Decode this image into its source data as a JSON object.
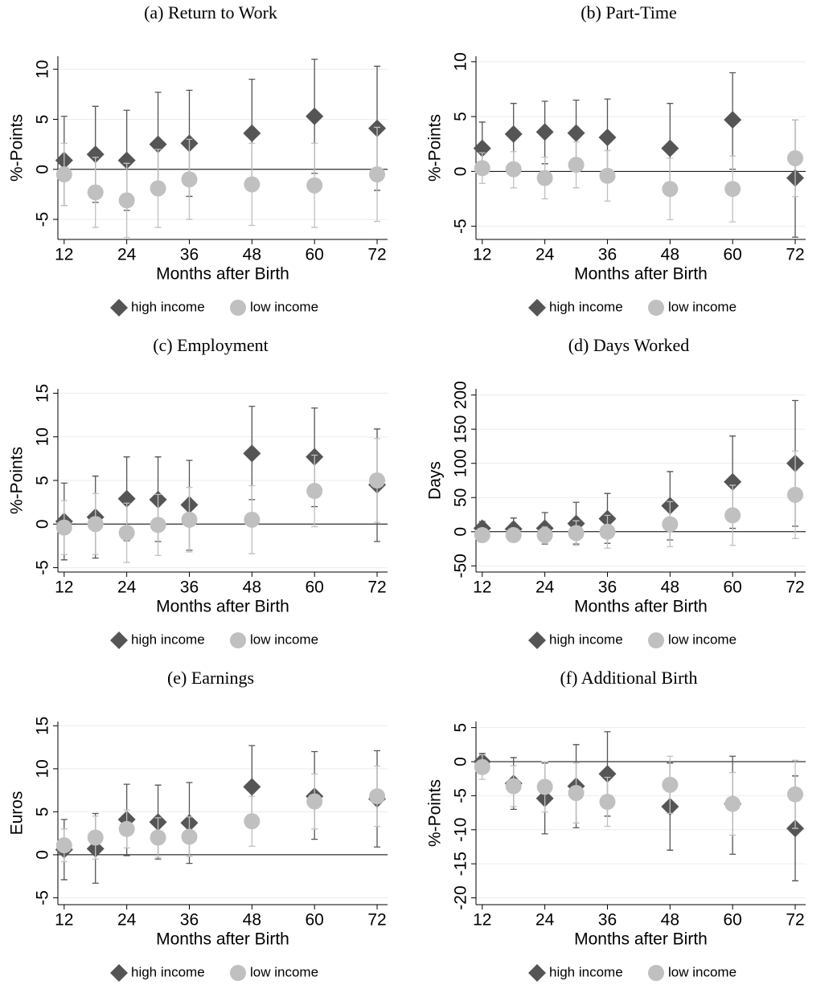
{
  "chart_data": [
    {
      "type": "scatter",
      "title": "(a) Return to Work",
      "x_label": "Months after Birth",
      "y_label": "%-Points",
      "x": [
        12,
        18,
        24,
        30,
        36,
        48,
        60,
        72
      ],
      "xlim": [
        10.8,
        74
      ],
      "xticks": [
        12,
        24,
        36,
        48,
        60,
        72
      ],
      "ylim": [
        -7,
        11.3
      ],
      "yticks": [
        -5,
        0,
        5,
        10
      ],
      "grid": true,
      "hline": 0,
      "series": [
        {
          "name": "high income",
          "color": "#555555",
          "marker": "diamond",
          "values": [
            0.9,
            1.5,
            0.9,
            2.5,
            2.6,
            3.6,
            5.3,
            4.1
          ],
          "lower": [
            -3.6,
            -3.3,
            -4.1,
            -2.6,
            -2.7,
            -1.8,
            -0.4,
            -2.1
          ],
          "upper": [
            5.3,
            6.3,
            5.9,
            7.7,
            7.9,
            9.0,
            11.0,
            10.3
          ]
        },
        {
          "name": "low income",
          "color": "#c0c0c0",
          "marker": "circle",
          "values": [
            -0.5,
            -2.3,
            -3.1,
            -1.9,
            -1.0,
            -1.5,
            -1.6,
            -0.5
          ],
          "lower": [
            -3.6,
            -5.8,
            -6.8,
            -5.8,
            -5.0,
            -5.6,
            -5.8,
            -5.2
          ],
          "upper": [
            2.6,
            1.2,
            0.6,
            2.0,
            3.0,
            2.6,
            2.6,
            4.2
          ]
        }
      ]
    },
    {
      "type": "scatter",
      "title": "(b) Part-Time",
      "x_label": "Months after Birth",
      "y_label": "%-Points",
      "x": [
        12,
        18,
        24,
        30,
        36,
        48,
        60,
        72
      ],
      "xlim": [
        10.8,
        74
      ],
      "xticks": [
        12,
        24,
        36,
        48,
        60,
        72
      ],
      "ylim": [
        -6.2,
        10.5
      ],
      "yticks": [
        -5,
        0,
        5,
        10
      ],
      "grid": true,
      "hline": 0,
      "series": [
        {
          "name": "high income",
          "color": "#555555",
          "marker": "diamond",
          "values": [
            2.1,
            3.4,
            3.6,
            3.5,
            3.1,
            2.1,
            4.7,
            -0.6
          ],
          "lower": [
            -0.3,
            0.6,
            0.7,
            0.5,
            -0.4,
            -2.0,
            0.2,
            -6.0
          ],
          "upper": [
            4.5,
            6.2,
            6.4,
            6.5,
            6.6,
            6.2,
            9.0,
            4.7
          ]
        },
        {
          "name": "low income",
          "color": "#c0c0c0",
          "marker": "circle",
          "values": [
            0.3,
            0.2,
            -0.6,
            0.6,
            -0.4,
            -1.6,
            -1.6,
            1.2
          ],
          "lower": [
            -1.1,
            -1.5,
            -2.5,
            -1.5,
            -2.7,
            -4.4,
            -4.6,
            -2.3
          ],
          "upper": [
            1.7,
            1.8,
            1.3,
            2.7,
            1.9,
            1.2,
            1.4,
            4.7
          ]
        }
      ]
    },
    {
      "type": "scatter",
      "title": "(c) Employment",
      "x_label": "Months after Birth",
      "y_label": "%-Points",
      "x": [
        12,
        18,
        24,
        30,
        36,
        48,
        60,
        72
      ],
      "xlim": [
        10.8,
        74
      ],
      "xticks": [
        12,
        24,
        36,
        48,
        60,
        72
      ],
      "ylim": [
        -5.5,
        15.5
      ],
      "yticks": [
        -5,
        0,
        5,
        10,
        15
      ],
      "grid": true,
      "hline": 0,
      "series": [
        {
          "name": "high income",
          "color": "#555555",
          "marker": "diamond",
          "values": [
            0.3,
            0.8,
            2.9,
            2.8,
            2.2,
            8.1,
            7.7,
            4.5
          ],
          "lower": [
            -4.1,
            -3.9,
            -1.9,
            -2.0,
            -3.0,
            2.8,
            2.0,
            -2.0
          ],
          "upper": [
            4.7,
            5.5,
            7.7,
            7.7,
            7.3,
            13.5,
            13.3,
            10.9
          ]
        },
        {
          "name": "low income",
          "color": "#c0c0c0",
          "marker": "circle",
          "values": [
            -0.4,
            0.0,
            -1.0,
            -0.1,
            0.5,
            0.5,
            3.8,
            5.0
          ],
          "lower": [
            -3.5,
            -3.5,
            -4.4,
            -3.6,
            -3.2,
            -3.4,
            -0.3,
            0.2
          ],
          "upper": [
            2.7,
            3.5,
            2.4,
            3.4,
            4.2,
            4.4,
            7.9,
            9.8
          ]
        }
      ]
    },
    {
      "type": "scatter",
      "title": "(d) Days Worked",
      "x_label": "Months after Birth",
      "y_label": "Days",
      "x": [
        12,
        18,
        24,
        30,
        36,
        48,
        60,
        72
      ],
      "xlim": [
        10.8,
        74
      ],
      "xticks": [
        12,
        24,
        36,
        48,
        60,
        72
      ],
      "ylim": [
        -59,
        209
      ],
      "yticks": [
        -50,
        0,
        50,
        100,
        150,
        200
      ],
      "grid": true,
      "hline": 0,
      "series": [
        {
          "name": "high income",
          "color": "#555555",
          "marker": "diamond",
          "values": [
            5,
            4,
            5,
            12,
            19,
            38,
            73,
            100
          ],
          "lower": [
            -5,
            -10,
            -18,
            -18,
            -17,
            -12,
            5,
            8
          ],
          "upper": [
            15,
            20,
            28,
            43,
            56,
            88,
            140,
            192
          ]
        },
        {
          "name": "low income",
          "color": "#c0c0c0",
          "marker": "circle",
          "values": [
            -5,
            -5,
            -5,
            -2,
            0,
            11,
            24,
            54
          ],
          "lower": [
            -12,
            -12,
            -17,
            -20,
            -24,
            -22,
            -20,
            -10
          ],
          "upper": [
            2,
            2,
            7,
            16,
            24,
            44,
            68,
            118
          ]
        }
      ]
    },
    {
      "type": "scatter",
      "title": "(e) Earnings",
      "x_label": "Months after Birth",
      "y_label": "Euros",
      "x": [
        12,
        18,
        24,
        30,
        36,
        48,
        60,
        72
      ],
      "xlim": [
        10.8,
        74
      ],
      "xticks": [
        12,
        24,
        36,
        48,
        60,
        72
      ],
      "ylim": [
        -5.8,
        15.5
      ],
      "yticks": [
        -5,
        0,
        5,
        10,
        15
      ],
      "grid": true,
      "hline": 0,
      "series": [
        {
          "name": "high income",
          "color": "#555555",
          "marker": "diamond",
          "values": [
            0.6,
            0.7,
            4.1,
            3.8,
            3.7,
            7.9,
            6.8,
            6.5
          ],
          "lower": [
            -2.9,
            -3.3,
            -0.1,
            -0.5,
            -1.0,
            3.1,
            1.8,
            0.9
          ],
          "upper": [
            4.1,
            4.8,
            8.2,
            8.1,
            8.4,
            12.7,
            12.0,
            12.1
          ]
        },
        {
          "name": "low income",
          "color": "#c0c0c0",
          "marker": "circle",
          "values": [
            1.1,
            2.0,
            3.0,
            2.0,
            2.1,
            3.9,
            6.2,
            6.8
          ],
          "lower": [
            -0.8,
            -0.5,
            0.8,
            -0.3,
            -0.2,
            1.0,
            3.0,
            3.3
          ],
          "upper": [
            3.0,
            4.5,
            5.2,
            4.3,
            4.4,
            6.8,
            9.4,
            10.3
          ]
        }
      ]
    },
    {
      "type": "scatter",
      "title": "(f) Additional Birth",
      "x_label": "Months after Birth",
      "y_label": "%-Points",
      "x": [
        12,
        18,
        24,
        30,
        36,
        48,
        60,
        72
      ],
      "xlim": [
        10.8,
        74
      ],
      "xticks": [
        12,
        24,
        36,
        48,
        60,
        72
      ],
      "ylim": [
        -21,
        5.9
      ],
      "yticks": [
        -20,
        -15,
        -10,
        -5,
        0,
        5
      ],
      "grid": true,
      "hline": 0,
      "series": [
        {
          "name": "high income",
          "color": "#555555",
          "marker": "diamond",
          "values": [
            0.0,
            -3.2,
            -5.4,
            -3.6,
            -1.8,
            -6.6,
            -6.2,
            -9.8
          ],
          "lower": [
            -1.2,
            -7.0,
            -10.6,
            -9.7,
            -8.0,
            -13.0,
            -13.6,
            -17.5
          ],
          "upper": [
            1.2,
            0.6,
            -0.2,
            2.5,
            4.4,
            -0.2,
            0.8,
            -2.1
          ]
        },
        {
          "name": "low income",
          "color": "#c0c0c0",
          "marker": "circle",
          "values": [
            -0.8,
            -3.6,
            -3.7,
            -4.6,
            -5.9,
            -3.4,
            -6.2,
            -4.8
          ],
          "lower": [
            -2.6,
            -6.6,
            -7.4,
            -9.0,
            -9.5,
            -7.6,
            -10.8,
            -9.8
          ],
          "upper": [
            1.0,
            -0.6,
            0.0,
            -0.2,
            -2.3,
            0.8,
            -1.6,
            0.2
          ]
        }
      ]
    }
  ]
}
